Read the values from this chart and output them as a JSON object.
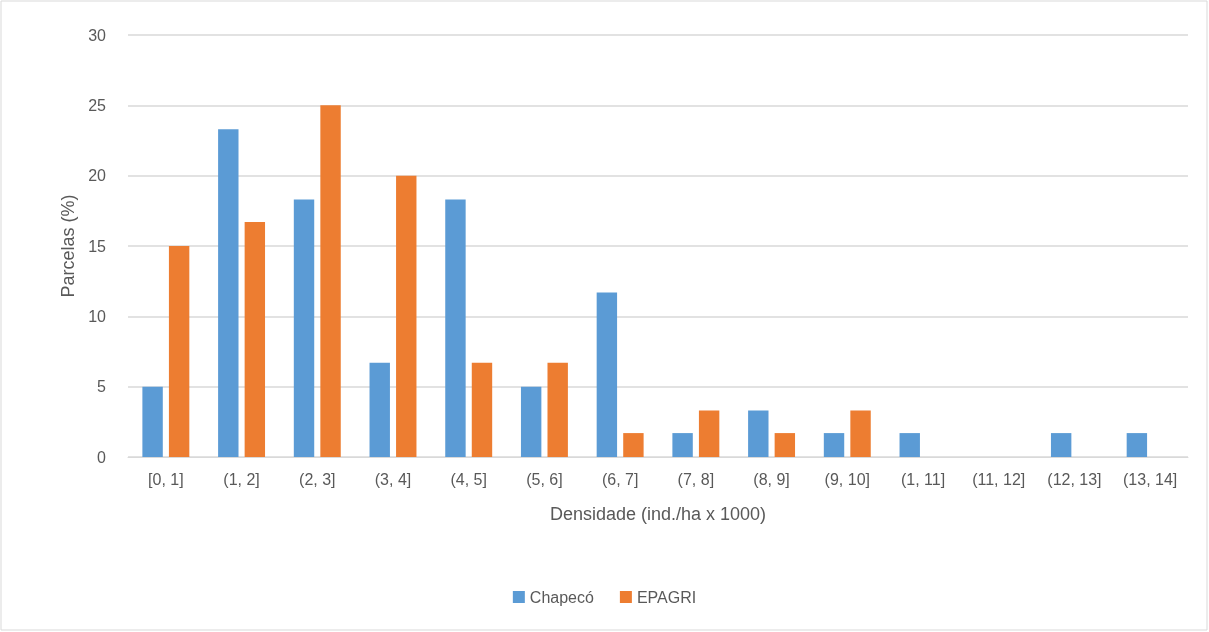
{
  "chart_data": {
    "type": "bar",
    "xlabel": "Densidade (ind./ha x 1000)",
    "ylabel": "Parcelas (%)",
    "categories": [
      "[0, 1]",
      "(1, 2]",
      "(2, 3]",
      "(3, 4]",
      "(4, 5]",
      "(5, 6]",
      "(6, 7]",
      "(7, 8]",
      "(8, 9]",
      "(9, 10]",
      "(1, 11]",
      "(11, 12]",
      "(12, 13]",
      "(13, 14]"
    ],
    "series": [
      {
        "name": "Chapecó",
        "color": "#5b9bd5",
        "values": [
          5,
          23.3,
          18.3,
          6.7,
          18.3,
          5,
          11.7,
          1.7,
          3.3,
          1.7,
          1.7,
          0,
          1.7,
          1.7
        ]
      },
      {
        "name": "EPAGRI",
        "color": "#ed7d31",
        "values": [
          15,
          16.7,
          25,
          20,
          6.7,
          6.7,
          1.7,
          3.3,
          1.7,
          3.3,
          0,
          0,
          0,
          0
        ]
      }
    ],
    "ylim": [
      0,
      30
    ],
    "yticks": [
      0,
      5,
      10,
      15,
      20,
      25,
      30
    ],
    "grid": "y",
    "legend": "bottom"
  }
}
